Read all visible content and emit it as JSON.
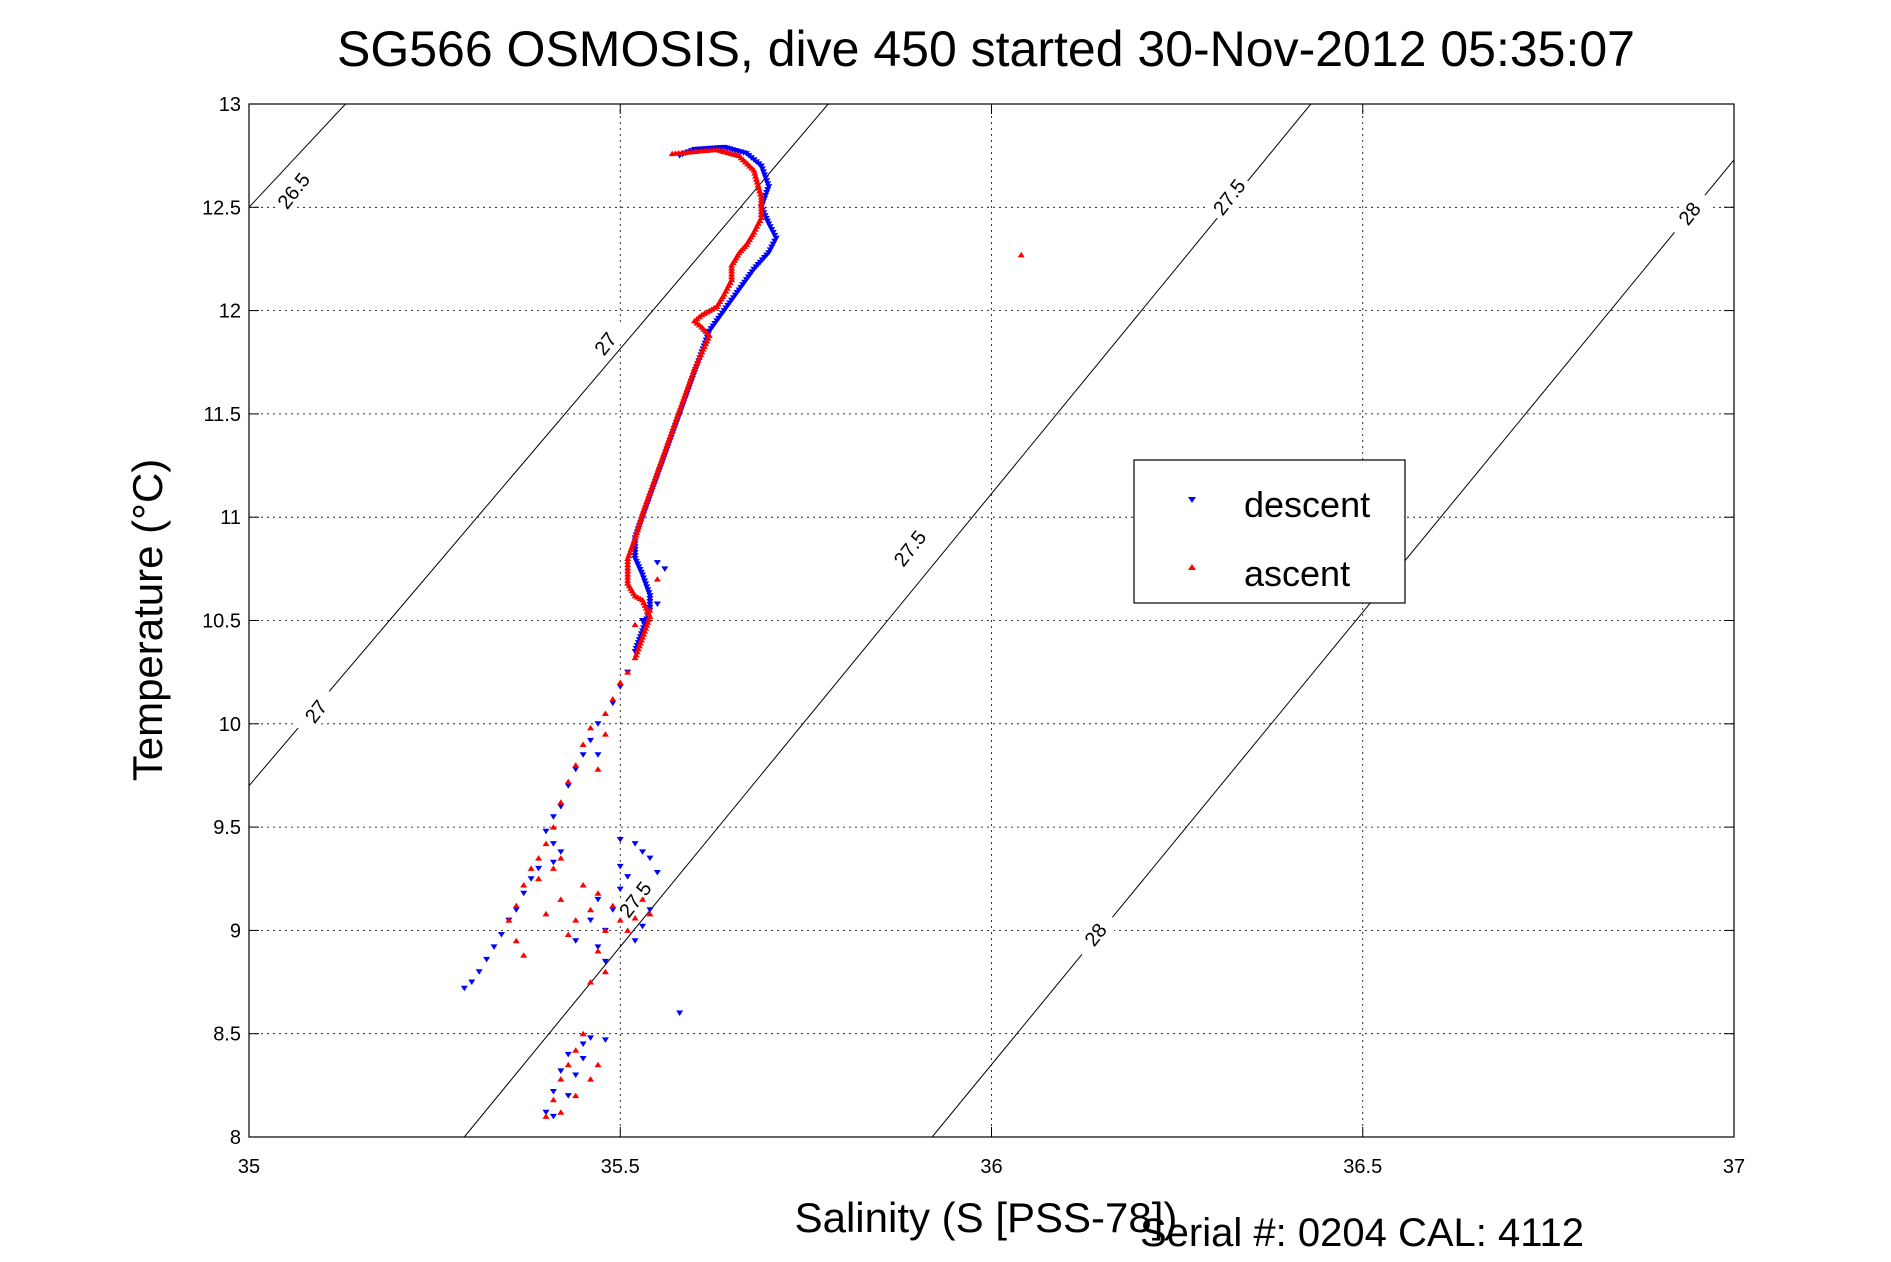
{
  "chart_data": {
    "type": "scatter",
    "title": "SG566 OSMOSIS, dive 450 started 30-Nov-2012 05:35:07",
    "xlabel": "Salinity (S [PSS-78])",
    "ylabel": "Temperature (°C)",
    "footer": "Serial #: 0204  CAL: 4112",
    "xlim": [
      35,
      37
    ],
    "ylim": [
      8,
      13
    ],
    "xticks": [
      "35",
      "35.5",
      "36",
      "36.5",
      "37"
    ],
    "yticks": [
      "8",
      "8.5",
      "9",
      "9.5",
      "10",
      "10.5",
      "11",
      "11.5",
      "12",
      "12.5",
      "13"
    ],
    "grid": true,
    "legend": {
      "placement": "center-right",
      "entries": [
        {
          "label": "descent",
          "color": "#0000ff",
          "marker": "triangle-down"
        },
        {
          "label": "ascent",
          "color": "#ff0000",
          "marker": "triangle-up"
        }
      ]
    },
    "contours": [
      {
        "label": "26.5",
        "points": [
          [
            35,
            12.5
          ],
          [
            35.13,
            13
          ]
        ],
        "label_at": [
          35.06,
          12.58
        ],
        "label_rot": 52
      },
      {
        "label": "27",
        "points": [
          [
            35,
            9.7
          ],
          [
            35.78,
            13
          ]
        ],
        "label_at": [
          35.48,
          11.84
        ],
        "label_rot": 52
      },
      {
        "label": "27",
        "label_at": [
          35.09,
          10.06
        ],
        "label_rot": 52
      },
      {
        "label": "27.5",
        "points": [
          [
            35.29,
            8
          ],
          [
            36.43,
            13
          ]
        ],
        "label_at": [
          36.32,
          12.55
        ],
        "label_rot": 52
      },
      {
        "label": "27.5",
        "label_at": [
          35.89,
          10.85
        ],
        "label_rot": 52
      },
      {
        "label": "27.5",
        "label_at": [
          35.52,
          9.15
        ],
        "label_rot": 52
      },
      {
        "label": "28",
        "points": [
          [
            35.92,
            8
          ],
          [
            37,
            12.73
          ]
        ],
        "label_at": [
          36.94,
          12.47
        ],
        "label_rot": 52
      },
      {
        "label": "28",
        "label_at": [
          36.14,
          8.98
        ],
        "label_rot": 52
      }
    ],
    "series": [
      {
        "name": "descent",
        "color": "#0000ff",
        "marker": "triangle-down",
        "path": [
          [
            35.58,
            12.75
          ],
          [
            35.6,
            12.78
          ],
          [
            35.64,
            12.79
          ],
          [
            35.67,
            12.76
          ],
          [
            35.69,
            12.7
          ],
          [
            35.7,
            12.6
          ],
          [
            35.69,
            12.5
          ],
          [
            35.7,
            12.42
          ],
          [
            35.71,
            12.35
          ],
          [
            35.7,
            12.28
          ],
          [
            35.68,
            12.2
          ],
          [
            35.66,
            12.1
          ],
          [
            35.64,
            12.0
          ],
          [
            35.62,
            11.9
          ],
          [
            35.61,
            11.8
          ],
          [
            35.6,
            11.7
          ],
          [
            35.59,
            11.6
          ],
          [
            35.58,
            11.5
          ],
          [
            35.57,
            11.4
          ],
          [
            35.56,
            11.3
          ],
          [
            35.55,
            11.2
          ],
          [
            35.54,
            11.1
          ],
          [
            35.53,
            11.0
          ],
          [
            35.52,
            10.9
          ],
          [
            35.52,
            10.8
          ],
          [
            35.53,
            10.72
          ],
          [
            35.54,
            10.62
          ],
          [
            35.54,
            10.55
          ],
          [
            35.53,
            10.45
          ],
          [
            35.52,
            10.35
          ]
        ],
        "scatter": [
          [
            35.51,
            10.25
          ],
          [
            35.5,
            10.18
          ],
          [
            35.49,
            10.1
          ],
          [
            35.47,
            10.0
          ],
          [
            35.46,
            9.92
          ],
          [
            35.45,
            9.85
          ],
          [
            35.44,
            9.78
          ],
          [
            35.43,
            9.7
          ],
          [
            35.42,
            9.6
          ],
          [
            35.41,
            9.55
          ],
          [
            35.4,
            9.48
          ],
          [
            35.41,
            9.42
          ],
          [
            35.42,
            9.38
          ],
          [
            35.41,
            9.33
          ],
          [
            35.39,
            9.3
          ],
          [
            35.38,
            9.25
          ],
          [
            35.37,
            9.18
          ],
          [
            35.36,
            9.1
          ],
          [
            35.35,
            9.05
          ],
          [
            35.34,
            8.98
          ],
          [
            35.33,
            8.92
          ],
          [
            35.32,
            8.86
          ],
          [
            35.31,
            8.8
          ],
          [
            35.3,
            8.75
          ],
          [
            35.29,
            8.72
          ],
          [
            35.5,
            9.44
          ],
          [
            35.52,
            9.42
          ],
          [
            35.53,
            9.38
          ],
          [
            35.54,
            9.35
          ],
          [
            35.55,
            9.28
          ],
          [
            35.5,
            9.2
          ],
          [
            35.49,
            9.1
          ],
          [
            35.48,
            9.0
          ],
          [
            35.47,
            8.92
          ],
          [
            35.48,
            8.85
          ],
          [
            35.52,
            8.95
          ],
          [
            35.53,
            9.02
          ],
          [
            35.54,
            9.1
          ],
          [
            35.58,
            8.6
          ],
          [
            35.45,
            8.45
          ],
          [
            35.43,
            8.4
          ],
          [
            35.42,
            8.32
          ],
          [
            35.41,
            8.22
          ],
          [
            35.4,
            8.12
          ],
          [
            35.41,
            8.1
          ],
          [
            35.43,
            8.2
          ],
          [
            35.44,
            8.3
          ],
          [
            35.45,
            8.38
          ],
          [
            35.46,
            8.48
          ],
          [
            35.48,
            8.47
          ],
          [
            35.5,
            9.31
          ],
          [
            35.51,
            9.26
          ],
          [
            35.47,
            9.15
          ],
          [
            35.46,
            9.05
          ],
          [
            35.44,
            8.95
          ],
          [
            35.53,
            10.5
          ],
          [
            35.55,
            10.58
          ],
          [
            35.56,
            10.75
          ],
          [
            35.55,
            10.78
          ],
          [
            35.47,
            9.85
          ]
        ]
      },
      {
        "name": "ascent",
        "color": "#ff0000",
        "marker": "triangle-up",
        "path": [
          [
            35.57,
            12.76
          ],
          [
            35.6,
            12.77
          ],
          [
            35.63,
            12.78
          ],
          [
            35.66,
            12.75
          ],
          [
            35.68,
            12.68
          ],
          [
            35.69,
            12.55
          ],
          [
            35.69,
            12.45
          ],
          [
            35.68,
            12.38
          ],
          [
            35.67,
            12.32
          ],
          [
            35.66,
            12.28
          ],
          [
            35.65,
            12.22
          ],
          [
            35.65,
            12.15
          ],
          [
            35.64,
            12.08
          ],
          [
            35.63,
            12.02
          ],
          [
            35.61,
            11.98
          ],
          [
            35.6,
            11.95
          ],
          [
            35.61,
            11.92
          ],
          [
            35.62,
            11.88
          ],
          [
            35.61,
            11.8
          ],
          [
            35.6,
            11.72
          ],
          [
            35.59,
            11.62
          ],
          [
            35.58,
            11.52
          ],
          [
            35.57,
            11.42
          ],
          [
            35.56,
            11.32
          ],
          [
            35.55,
            11.22
          ],
          [
            35.54,
            11.12
          ],
          [
            35.53,
            11.02
          ],
          [
            35.52,
            10.9
          ],
          [
            35.51,
            10.8
          ],
          [
            35.51,
            10.68
          ],
          [
            35.52,
            10.62
          ],
          [
            35.53,
            10.6
          ],
          [
            35.54,
            10.52
          ],
          [
            35.53,
            10.42
          ],
          [
            35.52,
            10.32
          ]
        ],
        "scatter": [
          [
            36.04,
            12.27
          ],
          [
            35.64,
            12.77
          ],
          [
            35.51,
            10.25
          ],
          [
            35.5,
            10.2
          ],
          [
            35.49,
            10.12
          ],
          [
            35.48,
            10.05
          ],
          [
            35.46,
            9.98
          ],
          [
            35.45,
            9.9
          ],
          [
            35.44,
            9.8
          ],
          [
            35.43,
            9.72
          ],
          [
            35.42,
            9.62
          ],
          [
            35.41,
            9.5
          ],
          [
            35.4,
            9.42
          ],
          [
            35.39,
            9.35
          ],
          [
            35.38,
            9.3
          ],
          [
            35.37,
            9.22
          ],
          [
            35.36,
            9.12
          ],
          [
            35.35,
            9.05
          ],
          [
            35.36,
            8.95
          ],
          [
            35.37,
            8.88
          ],
          [
            35.45,
            9.22
          ],
          [
            35.47,
            9.18
          ],
          [
            35.49,
            9.12
          ],
          [
            35.5,
            9.05
          ],
          [
            35.51,
            9.0
          ],
          [
            35.46,
            9.1
          ],
          [
            35.44,
            9.05
          ],
          [
            35.43,
            8.98
          ],
          [
            35.47,
            8.9
          ],
          [
            35.48,
            8.8
          ],
          [
            35.52,
            9.06
          ],
          [
            35.54,
            9.08
          ],
          [
            35.53,
            9.15
          ],
          [
            35.42,
            9.15
          ],
          [
            35.4,
            9.08
          ],
          [
            35.43,
            8.35
          ],
          [
            35.44,
            8.42
          ],
          [
            35.45,
            8.5
          ],
          [
            35.42,
            8.28
          ],
          [
            35.41,
            8.18
          ],
          [
            35.4,
            8.1
          ],
          [
            35.42,
            8.12
          ],
          [
            35.44,
            8.2
          ],
          [
            35.46,
            8.28
          ],
          [
            35.47,
            8.35
          ],
          [
            35.39,
            9.25
          ],
          [
            35.41,
            9.3
          ],
          [
            35.42,
            9.35
          ],
          [
            35.48,
            9.0
          ],
          [
            35.46,
            8.75
          ],
          [
            35.52,
            10.48
          ],
          [
            35.54,
            10.55
          ],
          [
            35.55,
            10.7
          ],
          [
            35.48,
            9.95
          ],
          [
            35.47,
            9.78
          ]
        ]
      }
    ]
  }
}
